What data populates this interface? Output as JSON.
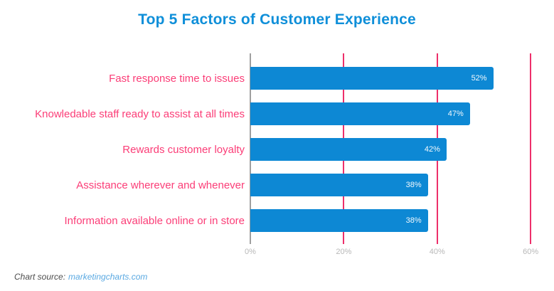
{
  "title": "Top 5 Factors of Customer Experience",
  "chart_data": {
    "type": "bar",
    "orientation": "horizontal",
    "title": "Top 5 Factors of Customer Experience",
    "categories": [
      "Fast response time to issues",
      "Knowledable staff ready to assist at all times",
      "Rewards customer loyalty",
      "Assistance wherever and whenever",
      "Information available online or in store"
    ],
    "values": [
      52,
      47,
      42,
      38,
      38
    ],
    "value_labels": [
      "52%",
      "47%",
      "42%",
      "38%",
      "38%"
    ],
    "x_ticks": [
      0,
      20,
      40,
      60
    ],
    "x_tick_labels": [
      "0%",
      "20%",
      "40%",
      "60%"
    ],
    "xlim": [
      0,
      65
    ],
    "grid": "vertical",
    "legend": "none",
    "xlabel": "",
    "ylabel": ""
  },
  "footer": {
    "source_label": "Chart source:",
    "source_link": "marketingcharts.com"
  },
  "colors": {
    "bar": "#0d88d4",
    "title": "#0f8fd9",
    "category_label": "#fb3d77",
    "gridline": "#ed2f6a",
    "zero_line": "#3f3f3f",
    "tick_label": "#b8b8b8",
    "value_label": "#ffffff",
    "source_text": "#4d4d4d",
    "source_link": "#5aa9e2",
    "background": "#ffffff"
  }
}
